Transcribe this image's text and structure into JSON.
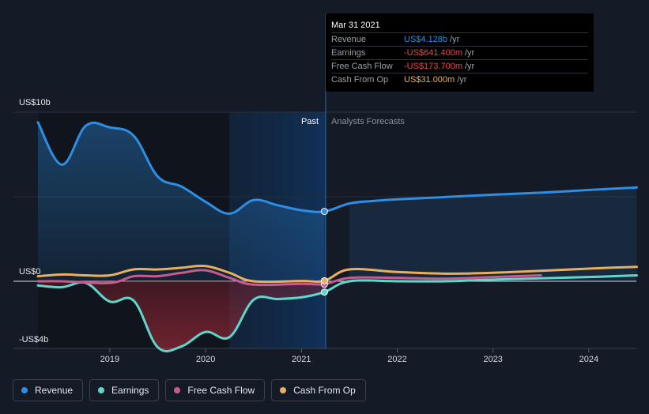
{
  "chart_data": {
    "type": "line",
    "x_axis": {
      "ticks": [
        "2019",
        "2020",
        "2021",
        "2022",
        "2023",
        "2024"
      ]
    },
    "y_axis": {
      "labels": {
        "top": "US$10b",
        "zero": "US$0",
        "bottom": "-US$4b"
      }
    },
    "regions": {
      "past_label": "Past",
      "forecast_label": "Analysts Forecasts",
      "split_date": "Mar 31 2021"
    },
    "series": [
      {
        "key": "revenue",
        "name": "Revenue",
        "color": "#2e8ee3",
        "fill": true,
        "points": [
          [
            2018.25,
            9.4
          ],
          [
            2018.5,
            6.9
          ],
          [
            2018.75,
            9.2
          ],
          [
            2019.0,
            9.1
          ],
          [
            2019.25,
            8.6
          ],
          [
            2019.5,
            6.2
          ],
          [
            2019.75,
            5.6
          ],
          [
            2020.0,
            4.7
          ],
          [
            2020.25,
            4.0
          ],
          [
            2020.5,
            4.8
          ],
          [
            2020.75,
            4.5
          ],
          [
            2021.0,
            4.2
          ],
          [
            2021.24,
            4.13
          ],
          [
            2021.5,
            4.6
          ],
          [
            2021.75,
            4.75
          ],
          [
            2022.0,
            4.85
          ],
          [
            2022.5,
            4.98
          ],
          [
            2023.0,
            5.12
          ],
          [
            2023.5,
            5.24
          ],
          [
            2024.0,
            5.4
          ],
          [
            2024.5,
            5.55
          ]
        ]
      },
      {
        "key": "earnings",
        "name": "Earnings",
        "color": "#5fd6c9",
        "fill": true,
        "points": [
          [
            2018.25,
            -0.25
          ],
          [
            2018.5,
            -0.35
          ],
          [
            2018.75,
            -0.1
          ],
          [
            2019.0,
            -1.2
          ],
          [
            2019.25,
            -1.15
          ],
          [
            2019.5,
            -3.9
          ],
          [
            2019.75,
            -3.85
          ],
          [
            2020.0,
            -3.0
          ],
          [
            2020.25,
            -3.3
          ],
          [
            2020.5,
            -1.1
          ],
          [
            2020.75,
            -1.05
          ],
          [
            2021.0,
            -0.95
          ],
          [
            2021.24,
            -0.64
          ],
          [
            2021.5,
            0.0
          ],
          [
            2022.0,
            0.0
          ],
          [
            2022.5,
            0.0
          ],
          [
            2023.0,
            0.1
          ],
          [
            2024.0,
            0.25
          ],
          [
            2024.5,
            0.35
          ]
        ]
      },
      {
        "key": "fcf",
        "name": "Free Cash Flow",
        "color": "#c85a8e",
        "fill": false,
        "points": [
          [
            2018.25,
            0.0
          ],
          [
            2018.5,
            0.0
          ],
          [
            2019.0,
            -0.1
          ],
          [
            2019.25,
            0.3
          ],
          [
            2019.5,
            0.3
          ],
          [
            2019.75,
            0.5
          ],
          [
            2020.0,
            0.65
          ],
          [
            2020.25,
            0.2
          ],
          [
            2020.5,
            -0.2
          ],
          [
            2021.0,
            -0.15
          ],
          [
            2021.24,
            -0.17
          ],
          [
            2021.5,
            0.2
          ],
          [
            2022.0,
            0.2
          ],
          [
            2022.5,
            0.15
          ],
          [
            2023.0,
            0.25
          ],
          [
            2023.5,
            0.35
          ]
        ]
      },
      {
        "key": "cfo",
        "name": "Cash From Op",
        "color": "#e8b05d",
        "fill": false,
        "points": [
          [
            2018.25,
            0.3
          ],
          [
            2018.5,
            0.4
          ],
          [
            2018.75,
            0.35
          ],
          [
            2019.0,
            0.35
          ],
          [
            2019.25,
            0.7
          ],
          [
            2019.5,
            0.7
          ],
          [
            2019.75,
            0.8
          ],
          [
            2020.0,
            0.9
          ],
          [
            2020.25,
            0.5
          ],
          [
            2020.5,
            0.0
          ],
          [
            2021.0,
            0.02
          ],
          [
            2021.24,
            0.03
          ],
          [
            2021.5,
            0.7
          ],
          [
            2022.0,
            0.55
          ],
          [
            2022.5,
            0.45
          ],
          [
            2023.0,
            0.5
          ],
          [
            2024.0,
            0.75
          ],
          [
            2024.5,
            0.85
          ]
        ]
      }
    ]
  },
  "tooltip": {
    "date": "Mar 31 2021",
    "rows": [
      {
        "label": "Revenue",
        "value": "US$4.128b",
        "unit": "/yr",
        "color": "#2e8ee3"
      },
      {
        "label": "Earnings",
        "value": "-US$641.400m",
        "unit": "/yr",
        "color": "#e5484d"
      },
      {
        "label": "Free Cash Flow",
        "value": "-US$173.700m",
        "unit": "/yr",
        "color": "#e5484d"
      },
      {
        "label": "Cash From Op",
        "value": "US$31.000m",
        "unit": "/yr",
        "color": "#e8b05d"
      }
    ]
  },
  "legend": [
    {
      "label": "Revenue",
      "color": "#2e8ee3"
    },
    {
      "label": "Earnings",
      "color": "#5fd6c9"
    },
    {
      "label": "Free Cash Flow",
      "color": "#c85a8e"
    },
    {
      "label": "Cash From Op",
      "color": "#e8b05d"
    }
  ]
}
